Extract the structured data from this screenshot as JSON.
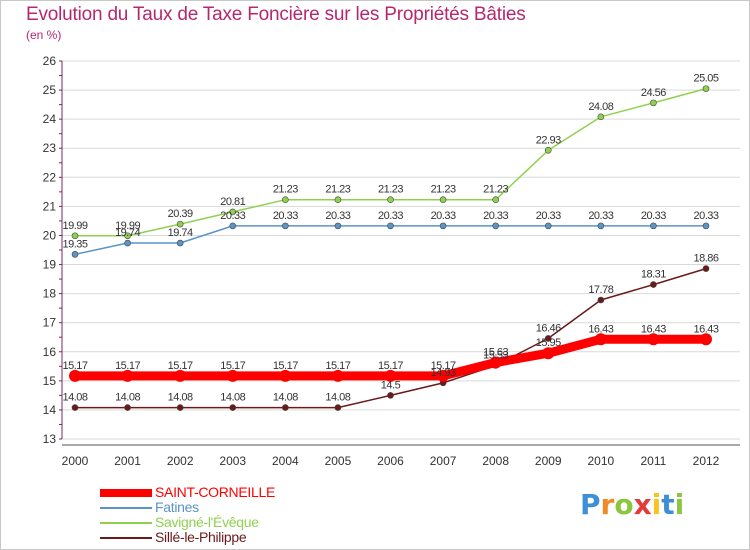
{
  "chart_data": {
    "type": "line",
    "title": "Evolution du Taux de Taxe Foncière sur les Propriétés Bâties",
    "unit_label": "(en %)",
    "x": [
      "2000",
      "2001",
      "2002",
      "2003",
      "2004",
      "2005",
      "2006",
      "2007",
      "2008",
      "2009",
      "2010",
      "2011",
      "2012"
    ],
    "ylim": [
      13,
      26
    ],
    "yticks": [
      "13",
      "14",
      "15",
      "16",
      "17",
      "18",
      "19",
      "20",
      "21",
      "22",
      "23",
      "24",
      "25",
      "26"
    ],
    "series": [
      {
        "name": "SAINT-CORNEILLE",
        "color": "#ff0000",
        "values": [
          15.17,
          15.17,
          15.17,
          15.17,
          15.17,
          15.17,
          15.17,
          15.17,
          15.63,
          15.95,
          16.43,
          16.43,
          16.43
        ],
        "labels": [
          "15.17",
          "15.17",
          "15.17",
          "15.17",
          "15.17",
          "15.17",
          "15.17",
          "15.17",
          "15.63",
          "15.95",
          "16.43",
          "16.43",
          "16.43"
        ]
      },
      {
        "name": "Fatines",
        "color": "#5b94c6",
        "values": [
          19.35,
          19.74,
          19.74,
          20.33,
          20.33,
          20.33,
          20.33,
          20.33,
          20.33,
          20.33,
          20.33,
          20.33,
          20.33
        ],
        "labels": [
          "19.35",
          "19.74",
          "19.74",
          "20.33",
          "20.33",
          "20.33",
          "20.33",
          "20.33",
          "20.33",
          "20.33",
          "20.33",
          "20.33",
          "20.33"
        ]
      },
      {
        "name": "Savigné-l'Évêque",
        "color": "#8fd14f",
        "values": [
          19.99,
          19.99,
          20.39,
          20.81,
          21.23,
          21.23,
          21.23,
          21.23,
          21.23,
          22.93,
          24.08,
          24.56,
          25.05
        ],
        "labels": [
          "19.99",
          "19.99",
          "20.39",
          "20.81",
          "21.23",
          "21.23",
          "21.23",
          "21.23",
          "21.23",
          "22.93",
          "24.08",
          "24.56",
          "25.05"
        ]
      },
      {
        "name": "Sillé-le-Philippe",
        "color": "#6b1a1a",
        "values": [
          14.08,
          14.08,
          14.08,
          14.08,
          14.08,
          14.08,
          14.5,
          14.93,
          15.53,
          16.46,
          17.78,
          18.31,
          18.86
        ],
        "labels": [
          "14.08",
          "14.08",
          "14.08",
          "14.08",
          "14.08",
          "14.08",
          "14.5",
          "14.93",
          "15.53",
          "16.46",
          "17.78",
          "18.31",
          "18.86"
        ]
      }
    ]
  },
  "logo": {
    "letters": [
      "P",
      "r",
      "o",
      "x",
      "i",
      "t",
      "i"
    ],
    "colors": [
      "#3f8fd6",
      "#f08a24",
      "#8cc63f",
      "#e23b3b",
      "#f7c51e",
      "#3f8fd6",
      "#8cc63f"
    ]
  }
}
